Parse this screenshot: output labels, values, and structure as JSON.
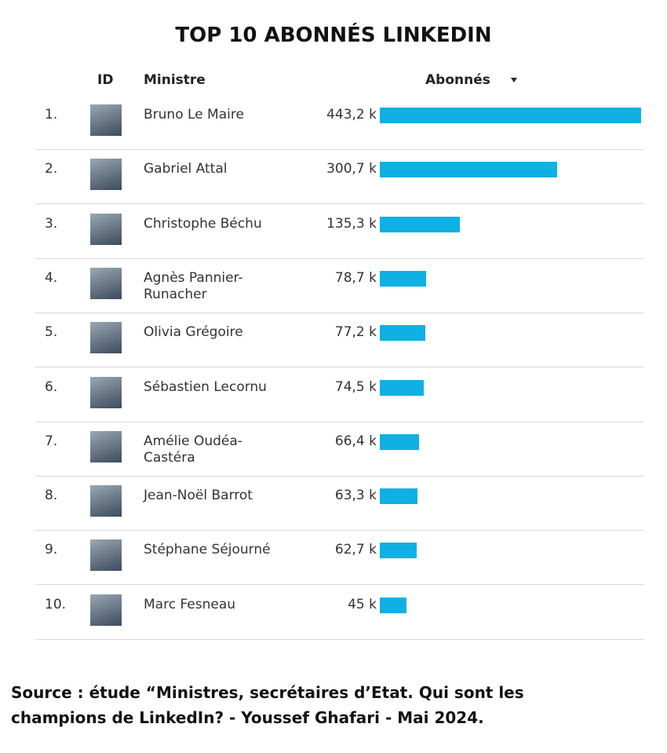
{
  "chart_data": {
    "type": "bar",
    "title": "TOP 10 ABONNÉS LINKEDIN",
    "headers": [
      "ID",
      "Ministre",
      "Abonnés"
    ],
    "ranks": [
      "1.",
      "2.",
      "3.",
      "4.",
      "5.",
      "6.",
      "7.",
      "8.",
      "9.",
      "10."
    ],
    "categories": [
      "Bruno Le Maire",
      "Gabriel Attal",
      "Christophe Béchu",
      "Agnès Pannier-Runacher",
      "Olivia Grégoire",
      "Sébastien Lecornu",
      "Amélie Oudéa-Castéra",
      "Jean-Noël Barrot",
      "Stéphane Séjourné",
      "Marc Fesneau"
    ],
    "values": [
      443.2,
      300.7,
      135.3,
      78.7,
      77.2,
      74.5,
      66.4,
      63.3,
      62.7,
      45
    ],
    "value_labels": [
      "443,2 k",
      "300,7 k",
      "135,3 k",
      "78,7 k",
      "77,2 k",
      "74,5 k",
      "66,4 k",
      "63,3 k",
      "62,7 k",
      "45 k"
    ],
    "color": "#0fb0e3",
    "source": "Source : étude “Ministres, secrétaires d’Etat. Qui sont les champions de LinkedIn? - Youssef Ghafari - Mai 2024."
  }
}
